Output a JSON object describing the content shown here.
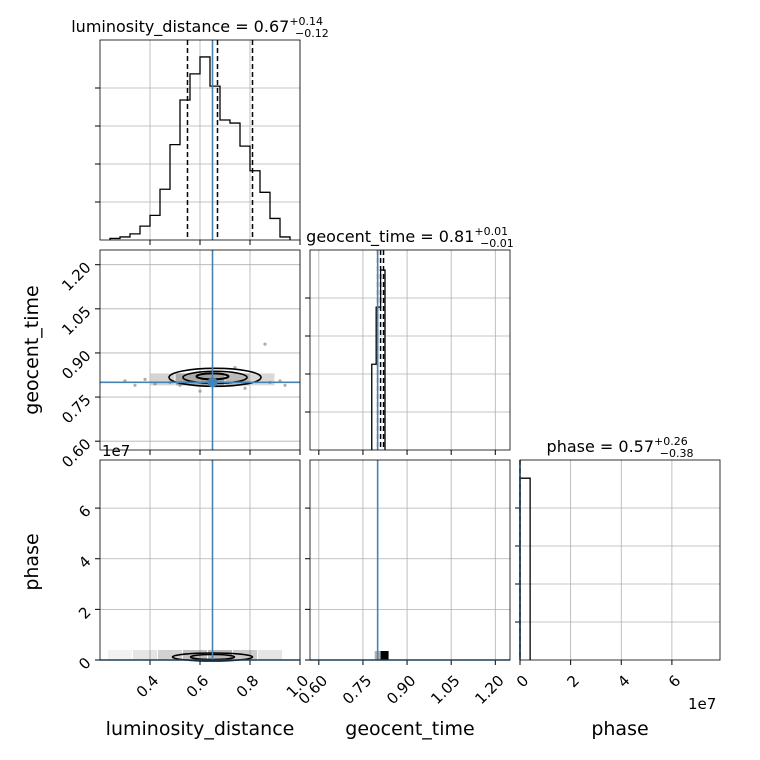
{
  "chart_data": {
    "type": "corner",
    "parameters": [
      {
        "name": "luminosity_distance",
        "axis_label": "luminosity_distance",
        "range": [
          0.2,
          1.0
        ],
        "ticks": [
          0.4,
          0.6,
          0.8,
          1.0
        ],
        "tick_labels": [
          "0.4",
          "0.6",
          "0.8",
          "1.0"
        ],
        "truth": 0.65
      },
      {
        "name": "geocent_time",
        "axis_label": "geocent_time",
        "range": [
          0.57,
          1.25
        ],
        "ticks": [
          0.6,
          0.75,
          0.9,
          1.05,
          1.2
        ],
        "tick_labels": [
          "0.60",
          "0.75",
          "0.90",
          "1.05",
          "1.20"
        ],
        "truth": 0.8
      },
      {
        "name": "phase",
        "axis_label": "phase",
        "range": [
          0,
          7.9
        ],
        "ticks": [
          0,
          2,
          4,
          6
        ],
        "tick_labels": [
          "0",
          "2",
          "4",
          "6"
        ],
        "offset_label": "1e7",
        "truth": 0
      }
    ],
    "titles": [
      {
        "text": "luminosity_distance = 0.67",
        "sup": "+0.14",
        "sub": "−0.12"
      },
      {
        "text": "geocent_time = 0.81",
        "sup": "+0.01",
        "sub": "−0.01"
      },
      {
        "text": "phase = 0.57",
        "sup": "+0.26",
        "sub": "−0.38"
      }
    ],
    "row_offset_label": "1e7",
    "histograms": [
      {
        "param": "luminosity_distance",
        "bin_edges": [
          0.24,
          0.28,
          0.32,
          0.36,
          0.4,
          0.44,
          0.48,
          0.52,
          0.56,
          0.6,
          0.64,
          0.68,
          0.72,
          0.76,
          0.8,
          0.84,
          0.88,
          0.92,
          0.96
        ],
        "counts": [
          1,
          2,
          4,
          9,
          16,
          33,
          62,
          91,
          108,
          119,
          100,
          78,
          76,
          61,
          45,
          31,
          14,
          2
        ],
        "quantiles": [
          0.55,
          0.67,
          0.81
        ],
        "ymax": 130
      },
      {
        "param": "geocent_time",
        "bin_edges": [
          0.78,
          0.795,
          0.81,
          0.825
        ],
        "counts": [
          60,
          100,
          126
        ],
        "quantiles": [
          0.8,
          0.81,
          0.82
        ],
        "ymax": 140
      },
      {
        "param": "phase",
        "bin_edges": [
          0,
          0.4
        ],
        "counts": [
          50
        ],
        "quantiles": [
          0.0
        ],
        "ymax": 55
      }
    ],
    "grid": true,
    "truth_color": "#4682b4",
    "hist_color": "#000000",
    "grid_color": "#b0b0b0"
  }
}
